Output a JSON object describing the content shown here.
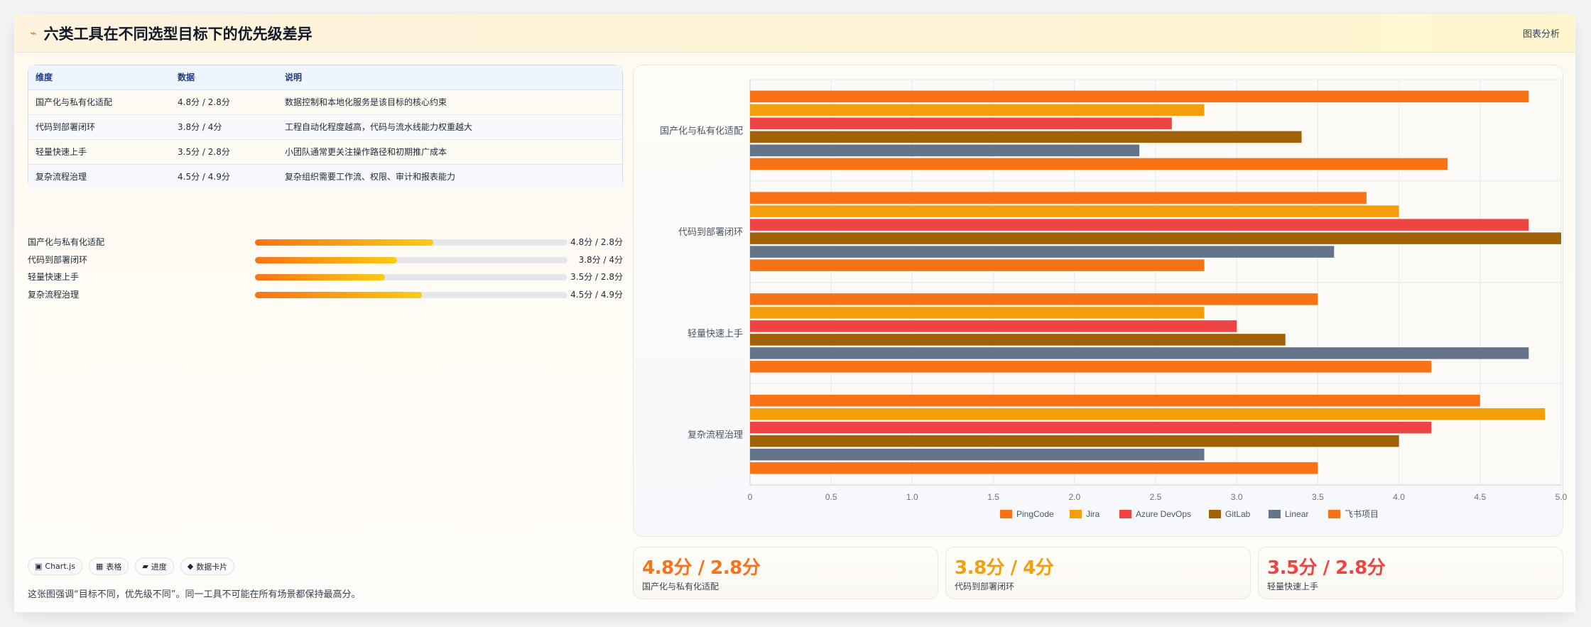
{
  "header": {
    "icon": "lightning-icon",
    "title": "六类工具在不同选型目标下的优先级差异",
    "tag": "图表分析"
  },
  "table": {
    "headers": [
      "维度",
      "数据",
      "说明"
    ],
    "rows": [
      {
        "dim": "国产化与私有化适配",
        "data": "4.8分 / 2.8分",
        "desc": "数据控制和本地化服务是该目标的核心约束"
      },
      {
        "dim": "代码到部署闭环",
        "data": "3.8分 / 4分",
        "desc": "工程自动化程度越高，代码与流水线能力权重越大"
      },
      {
        "dim": "轻量快速上手",
        "data": "3.5分 / 2.8分",
        "desc": "小团队通常更关注操作路径和初期推广成本"
      },
      {
        "dim": "复杂流程治理",
        "data": "4.5分 / 4.9分",
        "desc": "复杂组织需要工作流、权限、审计和报表能力"
      }
    ]
  },
  "progress": [
    {
      "label": "国产化与私有化适配",
      "value": "4.8分 / 2.8分",
      "fraction": 0.57
    },
    {
      "label": "代码到部署闭环",
      "value": "3.8分 / 4分",
      "fraction": 0.455
    },
    {
      "label": "轻量快速上手",
      "value": "3.5分 / 2.8分",
      "fraction": 0.415
    },
    {
      "label": "复杂流程治理",
      "value": "4.5分 / 4.9分",
      "fraction": 0.535
    }
  ],
  "chips": [
    {
      "icon": "chart-icon",
      "glyph": "▣",
      "label": "Chart.js"
    },
    {
      "icon": "table-icon",
      "glyph": "▦",
      "label": "表格"
    },
    {
      "icon": "progress-icon",
      "glyph": "▰",
      "label": "进度"
    },
    {
      "icon": "card-icon",
      "glyph": "◆",
      "label": "数据卡片"
    }
  ],
  "note": "这张图强调“目标不同，优先级不同”。同一工具不可能在所有场景都保持最高分。",
  "stats": [
    {
      "value": "4.8分 / 2.8分",
      "label": "国产化与私有化适配",
      "color": "#f97316"
    },
    {
      "value": "3.8分 / 4分",
      "label": "代码到部署闭环",
      "color": "#f59e0b"
    },
    {
      "value": "3.5分 / 2.8分",
      "label": "轻量快速上手",
      "color": "#ef4444"
    }
  ],
  "chart_data": {
    "type": "bar",
    "orientation": "horizontal",
    "categories": [
      "国产化与私有化适配",
      "代码到部署闭环",
      "轻量快速上手",
      "复杂流程治理"
    ],
    "series": [
      {
        "name": "PingCode",
        "color": "#f97316",
        "values": [
          4.8,
          3.8,
          3.5,
          4.5
        ]
      },
      {
        "name": "Jira",
        "color": "#f59e0b",
        "values": [
          2.8,
          4.0,
          2.8,
          4.9
        ]
      },
      {
        "name": "Azure DevOps",
        "color": "#ef4444",
        "values": [
          2.6,
          4.8,
          3.0,
          4.2
        ]
      },
      {
        "name": "GitLab",
        "color": "#a16207",
        "values": [
          3.4,
          5.0,
          3.3,
          4.0
        ]
      },
      {
        "name": "Linear",
        "color": "#64748b",
        "values": [
          2.4,
          3.6,
          4.8,
          2.8
        ]
      },
      {
        "name": "飞书项目",
        "color": "#f97316",
        "values": [
          4.3,
          2.8,
          4.2,
          3.5
        ]
      }
    ],
    "xlim": [
      0,
      5
    ],
    "xticks": [
      "0",
      "0.5",
      "1.0",
      "1.5",
      "2.0",
      "2.5",
      "3.0",
      "3.5",
      "4.0",
      "4.5",
      "5.0"
    ],
    "grid": true,
    "legend": "bottom"
  }
}
